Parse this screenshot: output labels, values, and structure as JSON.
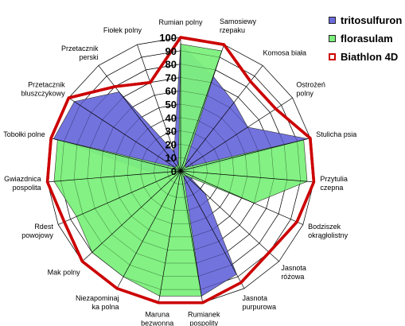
{
  "chart_data": {
    "type": "radar",
    "title": "",
    "categories": [
      "Rumian polny",
      "Samosiewy rzepaku",
      "Komosa biała",
      "Ostrożeń polny",
      "Stulicha psia",
      "Przytulia czepna",
      "Bodziszek okrągłolistny",
      "Jasnota różowa",
      "Jasnota purpurowa",
      "Rumianek pospolity",
      "Maruna bezwonna",
      "Niezapominajka polna",
      "Mak polny",
      "Rdest powojowy",
      "Gwiazdnica pospolita",
      "Tobołki polne",
      "Przetacznik bluszczykowy",
      "Przetacznik perski",
      "Fiołek polny"
    ],
    "category_lines": [
      [
        "Rumian polny"
      ],
      [
        "Samosiewy",
        "rzepaku"
      ],
      [
        "Komosa biała"
      ],
      [
        "Ostrożeń",
        "polny"
      ],
      [
        "Stulicha psia"
      ],
      [
        "Przytulia",
        "czepna"
      ],
      [
        "Bodziszek",
        "okrągłolistny"
      ],
      [
        "Jasnota",
        "różowa"
      ],
      [
        "Jasnota",
        "purpurowa"
      ],
      [
        "Rumianek",
        "pospolity"
      ],
      [
        "Maruna",
        "bezwonna"
      ],
      [
        "Niezapominaj",
        "ka polna"
      ],
      [
        "Mak polny"
      ],
      [
        "Rdest",
        "powojowy"
      ],
      [
        "Gwiazdnica",
        "pospolita"
      ],
      [
        "Tobołki polne"
      ],
      [
        "Przetacznik",
        "bluszczykowy"
      ],
      [
        "Przetacznik",
        "perski"
      ],
      [
        "Fiołek polny"
      ]
    ],
    "rlim": [
      0,
      100
    ],
    "ticks": [
      0,
      10,
      20,
      30,
      40,
      50,
      60,
      70,
      80,
      90,
      100
    ],
    "grid": true,
    "legend_position": "top-right",
    "series": [
      {
        "name": "tritosulfuron",
        "color": "#6b6bdc",
        "style": "filled",
        "values": [
          95,
          75,
          65,
          60,
          98,
          5,
          5,
          25,
          88,
          95,
          5,
          5,
          5,
          5,
          20,
          98,
          95,
          75,
          15
        ]
      },
      {
        "name": "florasulam",
        "color": "#7cf07c",
        "style": "filled",
        "values": [
          95,
          95,
          5,
          5,
          95,
          95,
          60,
          5,
          5,
          95,
          95,
          90,
          90,
          85,
          95,
          95,
          5,
          5,
          5
        ]
      },
      {
        "name": "Biathlon 4D",
        "color": "#cc0000",
        "style": "line",
        "values": [
          100,
          100,
          85,
          85,
          100,
          100,
          95,
          90,
          95,
          100,
          100,
          100,
          100,
          95,
          100,
          100,
          100,
          80,
          70
        ]
      }
    ]
  }
}
